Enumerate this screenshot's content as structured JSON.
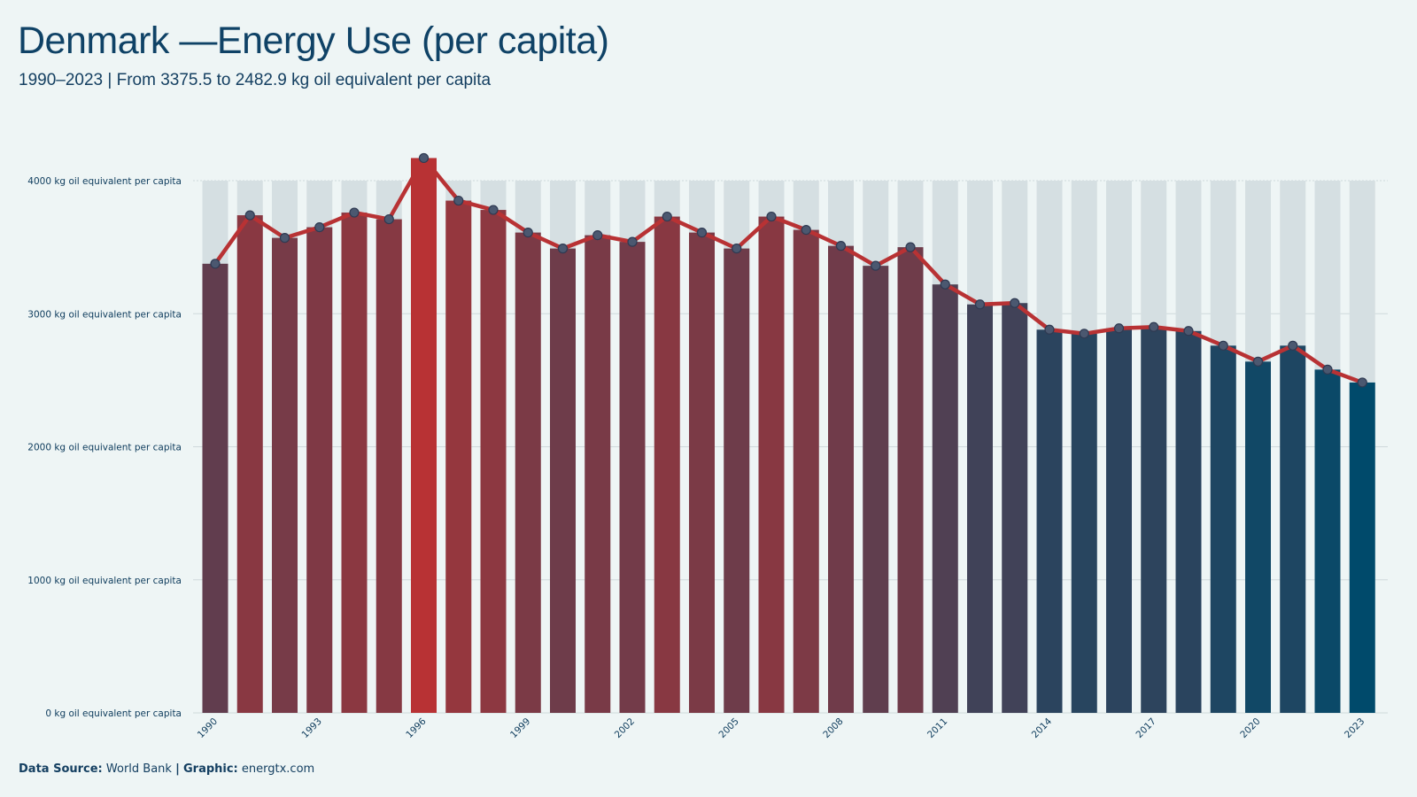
{
  "header": {
    "title": "Denmark —Energy Use (per capita)",
    "subtitle": "1990–2023 | From 3375.5 to 2482.9 kg oil equivalent per capita"
  },
  "footer": {
    "source_label": "Data Source:",
    "source_value": "World Bank",
    "separator": "|",
    "graphic_label": "Graphic:",
    "graphic_value": "energtx.com"
  },
  "chart_data": {
    "type": "bar",
    "overlay": "line",
    "x": [
      1990,
      1991,
      1992,
      1993,
      1994,
      1995,
      1996,
      1997,
      1998,
      1999,
      2000,
      2001,
      2002,
      2003,
      2004,
      2005,
      2006,
      2007,
      2008,
      2009,
      2010,
      2011,
      2012,
      2013,
      2014,
      2015,
      2016,
      2017,
      2018,
      2019,
      2020,
      2021,
      2022,
      2023
    ],
    "values": [
      3375.5,
      3740,
      3570,
      3650,
      3760,
      3710,
      4170,
      3850,
      3780,
      3610,
      3490,
      3590,
      3540,
      3730,
      3610,
      3490,
      3730,
      3630,
      3510,
      3360,
      3500,
      3220,
      3070,
      3080,
      2880,
      2850,
      2890,
      2900,
      2870,
      2760,
      2640,
      2760,
      2580,
      2482.9
    ],
    "xticks": [
      "1990",
      "1993",
      "1996",
      "1999",
      "2002",
      "2005",
      "2008",
      "2011",
      "2014",
      "2017",
      "2020",
      "2023"
    ],
    "yticks": [
      {
        "value": 0,
        "label": "0 kg oil equivalent per capita"
      },
      {
        "value": 1000,
        "label": "1000 kg oil equivalent per capita"
      },
      {
        "value": 2000,
        "label": "2000 kg oil equivalent per capita"
      },
      {
        "value": 3000,
        "label": "3000 kg oil equivalent per capita"
      },
      {
        "value": 4000,
        "label": "4000 kg oil equivalent per capita"
      }
    ],
    "ylim": [
      0,
      4000
    ],
    "grid": true,
    "colors": {
      "high": "#b83234",
      "low": "#004a6b",
      "line": "#b83234",
      "marker_fill": "#4b5870",
      "marker_stroke": "#2f3a52",
      "bar_track": "#d5dfe2",
      "grid": "#cfd9dc"
    }
  }
}
